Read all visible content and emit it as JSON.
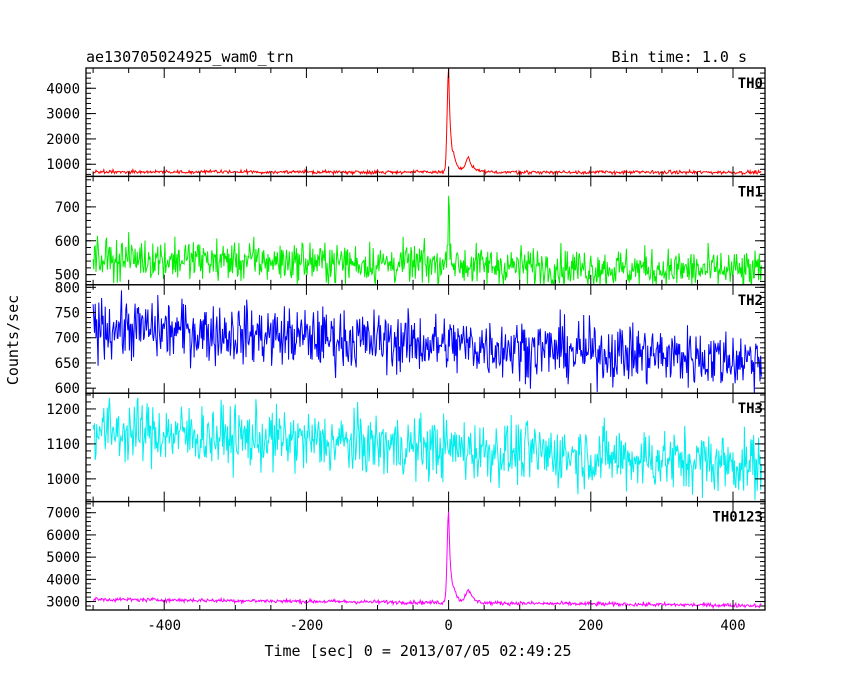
{
  "chart_data": {
    "type": "line",
    "title": "ae130705024925_wam0_trn",
    "subtitle": "Bin time: 1.0 s",
    "xlabel": "Time [sec] 0 = 2013/07/05 02:49:25",
    "ylabel": "Counts/sec",
    "xlim": [
      -510,
      445
    ],
    "x_ticks": [
      -400,
      -200,
      0,
      200,
      400
    ],
    "grid": false,
    "panels": [
      {
        "name": "TH0",
        "color": "#ff0000",
        "ylim": [
          520,
          4800
        ],
        "yticks": [
          1000,
          2000,
          3000,
          4000
        ],
        "baseline_start": 700,
        "baseline_end": 680,
        "noise": 35,
        "peaks": [
          {
            "t": 0,
            "amp": 4100,
            "rise": 2,
            "decay": 3
          },
          {
            "t": 8,
            "amp": 400,
            "rise": 2,
            "decay": 6
          },
          {
            "t": 28,
            "amp": 550,
            "rise": 4,
            "decay": 6
          }
        ]
      },
      {
        "name": "TH1",
        "color": "#00ee00",
        "ylim": [
          470,
          790
        ],
        "yticks": [
          500,
          600,
          700
        ],
        "baseline_start": 550,
        "baseline_end": 510,
        "noise": 30,
        "peaks": [
          {
            "t": 0,
            "amp": 230,
            "rise": 1,
            "decay": 2
          }
        ]
      },
      {
        "name": "TH2",
        "color": "#0000ff",
        "ylim": [
          590,
          805
        ],
        "yticks": [
          600,
          650,
          700,
          750,
          800
        ],
        "baseline_start": 722,
        "baseline_end": 655,
        "noise": 30,
        "peaks": []
      },
      {
        "name": "TH3",
        "color": "#00eeee",
        "ylim": [
          935,
          1245
        ],
        "yticks": [
          1000,
          1100,
          1200
        ],
        "baseline_start": 1140,
        "baseline_end": 1040,
        "noise": 45,
        "peaks": []
      },
      {
        "name": "TH0123",
        "color": "#ff00ff",
        "ylim": [
          2620,
          7500
        ],
        "yticks": [
          3000,
          4000,
          5000,
          6000,
          7000
        ],
        "baseline_start": 3100,
        "baseline_end": 2820,
        "noise": 45,
        "peaks": [
          {
            "t": 0,
            "amp": 4200,
            "rise": 2,
            "decay": 3
          },
          {
            "t": 8,
            "amp": 400,
            "rise": 2,
            "decay": 6
          },
          {
            "t": 28,
            "amp": 600,
            "rise": 4,
            "decay": 6
          }
        ]
      }
    ]
  }
}
